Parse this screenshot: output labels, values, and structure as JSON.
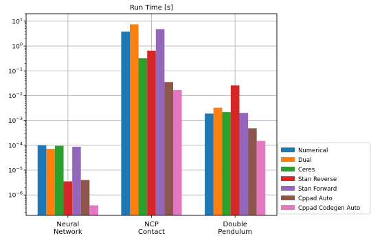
{
  "chart_data": {
    "type": "bar",
    "title": "Run Time [s]",
    "xlabel": "",
    "ylabel": "",
    "yscale": "log",
    "ylim": [
      1.5e-07,
      20
    ],
    "yticks": [
      {
        "value": 1e-06,
        "base": "10",
        "exp": "−6"
      },
      {
        "value": 1e-05,
        "base": "10",
        "exp": "−5"
      },
      {
        "value": 0.0001,
        "base": "10",
        "exp": "−4"
      },
      {
        "value": 0.001,
        "base": "10",
        "exp": "−3"
      },
      {
        "value": 0.01,
        "base": "10",
        "exp": "−2"
      },
      {
        "value": 0.1,
        "base": "10",
        "exp": "−1"
      },
      {
        "value": 1,
        "base": "10",
        "exp": "0"
      },
      {
        "value": 10,
        "base": "10",
        "exp": "1"
      }
    ],
    "grid": true,
    "legend_position": "right",
    "categories": [
      {
        "lines": [
          "Neural",
          "Network"
        ]
      },
      {
        "lines": [
          "NCP",
          "Contact"
        ]
      },
      {
        "lines": [
          "Double",
          "Pendulum"
        ]
      }
    ],
    "series": [
      {
        "name": "Numerical",
        "color": "#1f77b4",
        "values": [
          0.0001,
          3.8,
          0.0019
        ]
      },
      {
        "name": "Dual",
        "color": "#ff7f0e",
        "values": [
          7.2e-05,
          7.5,
          0.0033
        ]
      },
      {
        "name": "Ceres",
        "color": "#2ca02c",
        "values": [
          9.5e-05,
          0.32,
          0.0022
        ]
      },
      {
        "name": "Stan Reverse",
        "color": "#d62728",
        "values": [
          3.5e-06,
          0.65,
          0.026
        ]
      },
      {
        "name": "Stan Forward",
        "color": "#9467bd",
        "values": [
          8.7e-05,
          4.8,
          0.002
        ]
      },
      {
        "name": "Cppad Auto",
        "color": "#8c564b",
        "values": [
          4e-06,
          0.035,
          0.00048
        ]
      },
      {
        "name": "Cppad Codegen Auto",
        "color": "#e377c2",
        "values": [
          3.8e-07,
          0.017,
          0.00015
        ]
      }
    ]
  }
}
